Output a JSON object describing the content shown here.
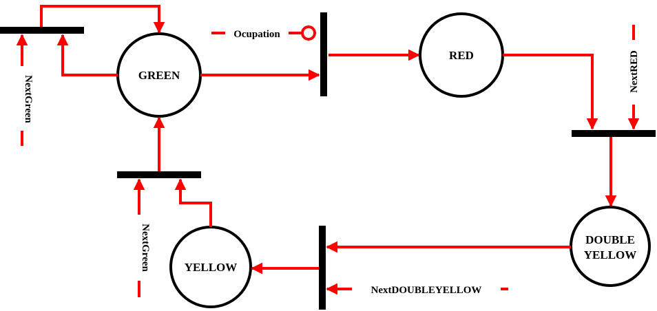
{
  "colors": {
    "arc": "#ff0000",
    "stroke": "#000000",
    "background": "#ffffff"
  },
  "places": {
    "green": "GREEN",
    "red": "RED",
    "double_yellow_line1": "DOUBLE",
    "double_yellow_line2": "YELLOW",
    "yellow": "YELLOW"
  },
  "signals": {
    "next_green_top": "NextGreen",
    "next_green_bottom": "NextGreen",
    "next_red": "NextRED",
    "ocupation": "Ocupation",
    "next_double_yellow": "NextDOUBLEYELLOW"
  }
}
